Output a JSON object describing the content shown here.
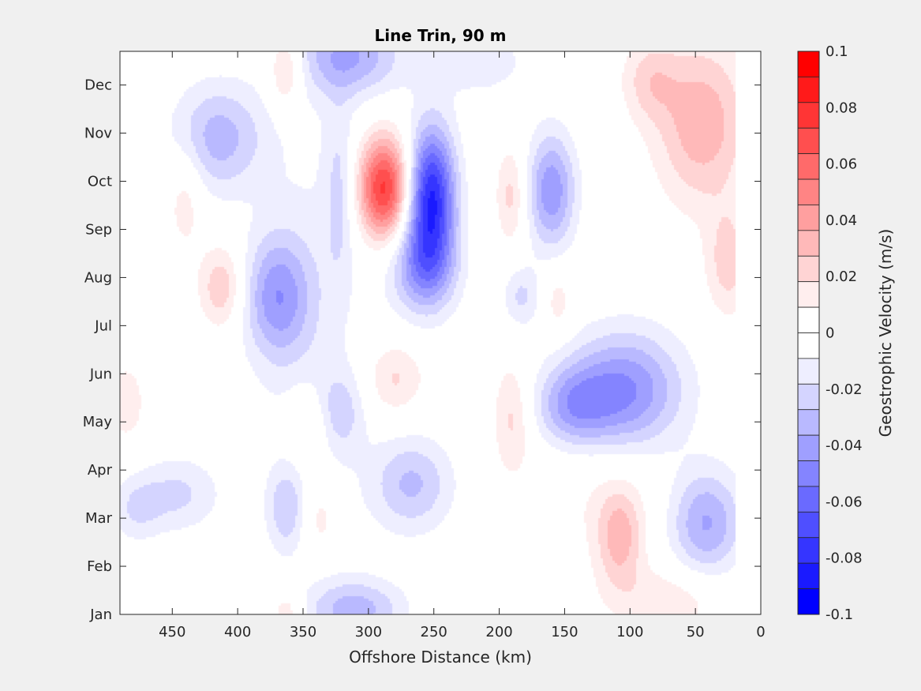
{
  "chart_data": {
    "type": "heatmap",
    "title": "Line Trin, 90 m",
    "xlabel": "Offshore Distance (km)",
    "ylabel": "",
    "xlim": [
      490,
      0
    ],
    "x_reversed": true,
    "x_ticks": [
      450,
      400,
      350,
      300,
      250,
      200,
      150,
      100,
      50,
      0
    ],
    "y_ticks": [
      "Jan",
      "Feb",
      "Mar",
      "Apr",
      "May",
      "Jun",
      "Jul",
      "Aug",
      "Sep",
      "Oct",
      "Nov",
      "Dec"
    ],
    "ylim": [
      1,
      12.7
    ],
    "colorbar": {
      "label": "Geostrophic Velocity (m/s)",
      "range": [
        -0.1,
        0.1
      ],
      "ticks": [
        "0.1",
        "0.08",
        "0.06",
        "0.04",
        "0.02",
        "0",
        "-0.02",
        "-0.04",
        "-0.06",
        "-0.08",
        "-0.1"
      ],
      "levels": 20,
      "colors": [
        "#0000ff",
        "#1a1aff",
        "#3535ff",
        "#4f4fff",
        "#6a6aff",
        "#8484ff",
        "#9f9fff",
        "#b9b9ff",
        "#d4d4ff",
        "#eeeeff",
        "#ffffff",
        "#ffffff",
        "#ffeeee",
        "#ffd4d4",
        "#ffb9b9",
        "#ff9f9f",
        "#ff8484",
        "#ff6a6a",
        "#ff4f4f",
        "#ff3535",
        "#ff1a1a",
        "#ff0000"
      ]
    },
    "features": [
      {
        "x": 288,
        "month": 9.85,
        "sx": 14,
        "sy": 0.75,
        "amp": 0.085
      },
      {
        "x": 252,
        "month": 9.7,
        "sx": 13,
        "sy": 1.0,
        "amp": -0.09
      },
      {
        "x": 258,
        "month": 8.2,
        "sx": 18,
        "sy": 0.7,
        "amp": -0.045
      },
      {
        "x": 315,
        "month": 12.6,
        "sx": 28,
        "sy": 0.6,
        "amp": -0.04
      },
      {
        "x": 363,
        "month": 12.3,
        "sx": 9,
        "sy": 0.55,
        "amp": 0.03
      },
      {
        "x": 415,
        "month": 10.9,
        "sx": 25,
        "sy": 0.8,
        "amp": -0.035
      },
      {
        "x": 370,
        "month": 7.6,
        "sx": 18,
        "sy": 0.9,
        "amp": -0.042
      },
      {
        "x": 412,
        "month": 7.8,
        "sx": 12,
        "sy": 0.6,
        "amp": 0.03
      },
      {
        "x": 440,
        "month": 9.7,
        "sx": 10,
        "sy": 0.8,
        "amp": 0.018
      },
      {
        "x": 160,
        "month": 9.8,
        "sx": 13,
        "sy": 0.85,
        "amp": -0.048
      },
      {
        "x": 191,
        "month": 9.7,
        "sx": 8,
        "sy": 0.7,
        "amp": 0.024
      },
      {
        "x": 105,
        "month": 5.6,
        "sx": 32,
        "sy": 0.9,
        "amp": -0.058
      },
      {
        "x": 145,
        "month": 5.3,
        "sx": 20,
        "sy": 0.6,
        "amp": -0.035
      },
      {
        "x": 108,
        "month": 2.6,
        "sx": 12,
        "sy": 0.7,
        "amp": 0.032
      },
      {
        "x": 42,
        "month": 2.9,
        "sx": 20,
        "sy": 0.8,
        "amp": -0.042
      },
      {
        "x": 45,
        "month": 11.2,
        "sx": 25,
        "sy": 1.2,
        "amp": 0.038
      },
      {
        "x": 85,
        "month": 12.1,
        "sx": 15,
        "sy": 0.6,
        "amp": 0.022
      },
      {
        "x": 25,
        "month": 8.3,
        "sx": 12,
        "sy": 0.8,
        "amp": 0.025
      },
      {
        "x": 280,
        "month": 5.9,
        "sx": 16,
        "sy": 0.55,
        "amp": 0.022
      },
      {
        "x": 322,
        "month": 5.2,
        "sx": 13,
        "sy": 0.6,
        "amp": -0.022
      },
      {
        "x": 267,
        "month": 3.7,
        "sx": 22,
        "sy": 0.7,
        "amp": -0.032
      },
      {
        "x": 363,
        "month": 3.2,
        "sx": 10,
        "sy": 0.6,
        "amp": -0.025
      },
      {
        "x": 337,
        "month": 3.0,
        "sx": 10,
        "sy": 0.6,
        "amp": 0.018
      },
      {
        "x": 310,
        "month": 1.1,
        "sx": 26,
        "sy": 0.45,
        "amp": -0.035
      },
      {
        "x": 362,
        "month": 1.05,
        "sx": 9,
        "sy": 0.35,
        "amp": 0.02
      },
      {
        "x": 190,
        "month": 5.1,
        "sx": 10,
        "sy": 0.8,
        "amp": 0.022
      },
      {
        "x": 183,
        "month": 7.6,
        "sx": 10,
        "sy": 0.45,
        "amp": -0.022
      },
      {
        "x": 445,
        "month": 3.5,
        "sx": 22,
        "sy": 0.55,
        "amp": -0.022
      },
      {
        "x": 345,
        "month": 4.9,
        "sx": 12,
        "sy": 0.6,
        "amp": 0.02
      },
      {
        "x": 155,
        "month": 7.5,
        "sx": 8,
        "sy": 0.5,
        "amp": 0.016
      },
      {
        "x": 485,
        "month": 5.4,
        "sx": 12,
        "sy": 0.7,
        "amp": 0.015
      },
      {
        "x": 478,
        "month": 3.2,
        "sx": 14,
        "sy": 0.5,
        "amp": -0.018
      },
      {
        "x": 70,
        "month": 1.3,
        "sx": 32,
        "sy": 0.5,
        "amp": 0.018
      },
      {
        "x": 215,
        "month": 12.5,
        "sx": 30,
        "sy": 0.6,
        "amp": -0.015
      },
      {
        "x": 322,
        "month": 9.8,
        "sx": 8,
        "sy": 1.3,
        "amp": -0.02
      },
      {
        "x": 345,
        "month": 7.0,
        "sx": 30,
        "sy": 3.5,
        "amp": -0.012
      },
      {
        "x": 120,
        "month": 4.2,
        "sx": 40,
        "sy": 1.5,
        "amp": 0.012
      }
    ]
  }
}
